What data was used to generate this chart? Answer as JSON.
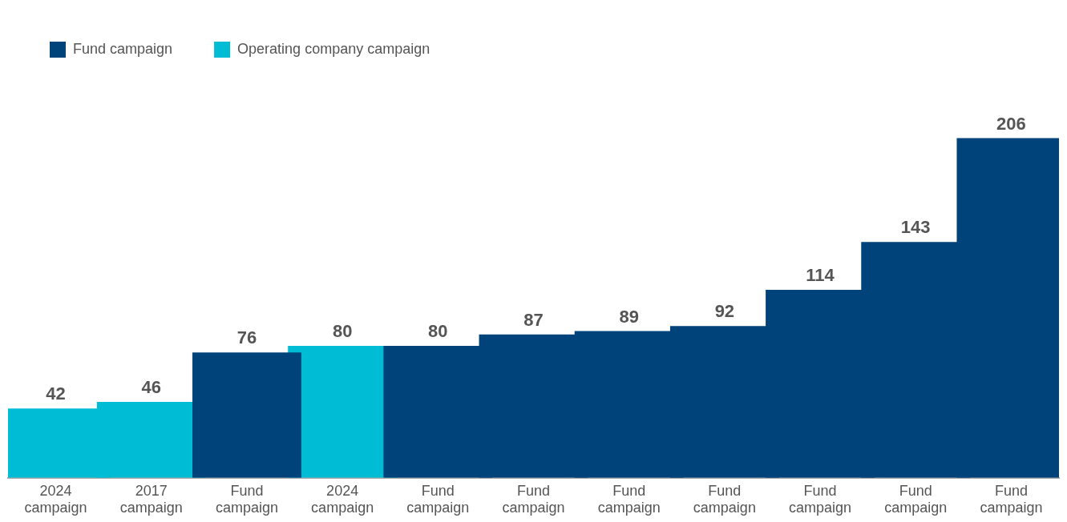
{
  "chart_data": {
    "type": "bar",
    "categories": [
      "2024 campaign",
      "2017 campaign",
      "Fund campaign",
      "2024 campaign",
      "Fund campaign",
      "Fund campaign",
      "Fund campaign",
      "Fund campaign",
      "Fund campaign",
      "Fund campaign",
      "Fund campaign"
    ],
    "series": [
      {
        "name": "Fund campaign",
        "color": "#00427a",
        "values": [
          null,
          null,
          76,
          null,
          80,
          87,
          89,
          92,
          114,
          143,
          206
        ]
      },
      {
        "name": "Operating company campaign",
        "color": "#00bcd4",
        "values": [
          42,
          46,
          null,
          80,
          null,
          null,
          null,
          null,
          null,
          null,
          null
        ]
      }
    ],
    "data_labels": true,
    "legend": "top left",
    "grid": false
  }
}
